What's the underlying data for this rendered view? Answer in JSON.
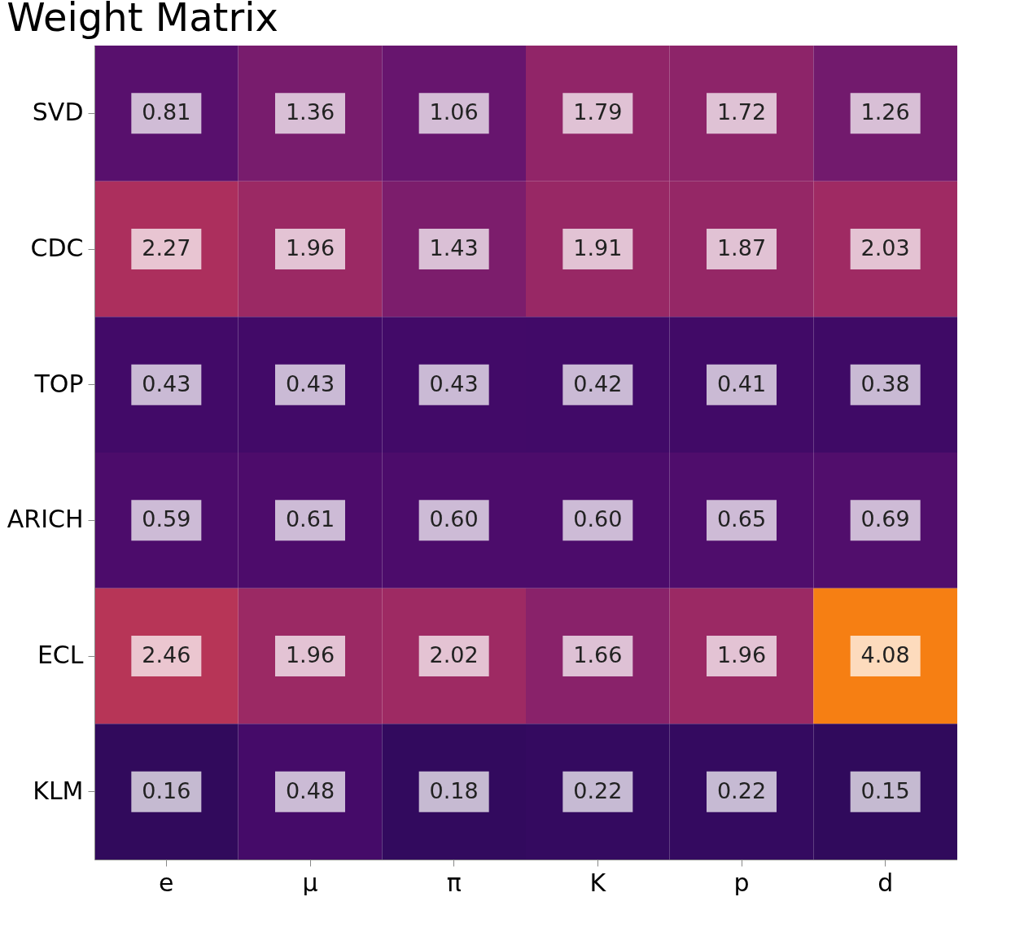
{
  "chart_data": {
    "type": "heatmap",
    "title": "Weight Matrix",
    "categories": [
      "e",
      "μ",
      "π",
      "K",
      "p",
      "d"
    ],
    "y_categories": [
      "SVD",
      "CDC",
      "TOP",
      "ARICH",
      "ECL",
      "KLM"
    ],
    "cells": [
      [
        0.81,
        1.36,
        1.06,
        1.79,
        1.72,
        1.26
      ],
      [
        2.27,
        1.96,
        1.43,
        1.91,
        1.87,
        2.03
      ],
      [
        0.43,
        0.43,
        0.43,
        0.42,
        0.41,
        0.38
      ],
      [
        0.59,
        0.61,
        0.6,
        0.6,
        0.65,
        0.69
      ],
      [
        2.46,
        1.96,
        2.02,
        1.66,
        1.96,
        4.08
      ],
      [
        0.16,
        0.48,
        0.18,
        0.22,
        0.22,
        0.15
      ]
    ],
    "cell_labels": [
      [
        "0.81",
        "1.36",
        "1.06",
        "1.79",
        "1.72",
        "1.26"
      ],
      [
        "2.27",
        "1.96",
        "1.43",
        "1.91",
        "1.87",
        "2.03"
      ],
      [
        "0.43",
        "0.43",
        "0.43",
        "0.42",
        "0.41",
        "0.38"
      ],
      [
        "0.59",
        "0.61",
        "0.60",
        "0.60",
        "0.65",
        "0.69"
      ],
      [
        "2.46",
        "1.96",
        "2.02",
        "1.66",
        "1.96",
        "4.08"
      ],
      [
        "0.16",
        "0.48",
        "0.18",
        "0.22",
        "0.22",
        "0.15"
      ]
    ]
  }
}
